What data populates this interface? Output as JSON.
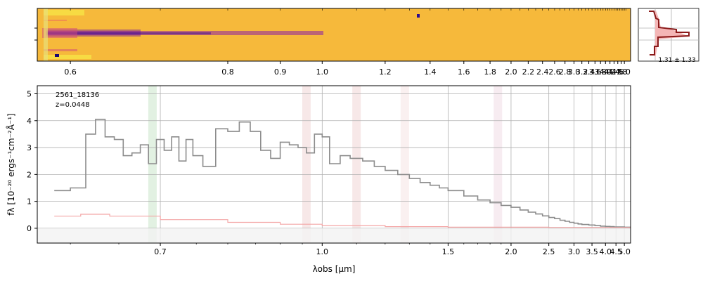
{
  "spectrum_2d": {
    "xticks_top": [
      "0.6",
      "0.8",
      "0.9",
      "1.0",
      "1.2",
      "1.4",
      "1.6",
      "1.8",
      "2.0",
      "2.2",
      "2.4",
      "2.6",
      "2.8",
      "3.0",
      "3.2",
      "3.4",
      "3.6",
      "3.8",
      "4.0",
      "4.2",
      "4.4",
      "4.6",
      "4.8",
      "5.0"
    ],
    "xticks_top_values": [
      0.6,
      0.8,
      0.9,
      1.0,
      1.2,
      1.4,
      1.6,
      1.8,
      2.0,
      2.2,
      2.4,
      2.6,
      2.8,
      3.0,
      3.2,
      3.4,
      3.6,
      3.8,
      4.0,
      4.2,
      4.4,
      4.6,
      4.8,
      5.0
    ],
    "colormap": "plasma",
    "background_color": "#f6b93b"
  },
  "profile": {
    "label": "1.31 ± 1.33",
    "line_color": "#8b1a1a",
    "fill_color": "#f4b6b6"
  },
  "chart_data": {
    "type": "line",
    "annotation": {
      "id": "2561_18136",
      "z": "z=0.0448"
    },
    "xlabel": "λobs [μm]",
    "ylabel": "fλ [10⁻²⁰ ergs⁻¹cm⁻²Å⁻¹]",
    "xscale": "reciprocal",
    "xlim": [
      0.57,
      5.45
    ],
    "ylim": [
      -0.55,
      5.3
    ],
    "xticks": [
      "0.7",
      "1.0",
      "1.5",
      "2.0",
      "2.5",
      "3.0",
      "3.5",
      "4.0",
      "4.5",
      "5.0"
    ],
    "xtick_values": [
      0.7,
      1.0,
      1.5,
      2.0,
      2.5,
      3.0,
      3.5,
      4.0,
      4.5,
      5.0
    ],
    "yticks": [
      "0",
      "1",
      "2",
      "3",
      "4",
      "5"
    ],
    "ytick_values": [
      0,
      1,
      2,
      3,
      4,
      5
    ],
    "grid": true,
    "emission_bands": [
      {
        "x": 0.69,
        "color": "#cfe8cf"
      },
      {
        "x": 0.96,
        "color": "#f2d9d9"
      },
      {
        "x": 1.1,
        "color": "#f2d9d9"
      },
      {
        "x": 1.28,
        "color": "#f7e6e6"
      },
      {
        "x": 1.87,
        "color": "#f2e0e8"
      }
    ],
    "series": [
      {
        "role": "flux",
        "color": "#8c8c8c",
        "x": [
          0.585,
          0.6,
          0.615,
          0.625,
          0.635,
          0.645,
          0.655,
          0.665,
          0.675,
          0.685,
          0.695,
          0.705,
          0.715,
          0.725,
          0.735,
          0.745,
          0.76,
          0.78,
          0.8,
          0.82,
          0.84,
          0.86,
          0.88,
          0.9,
          0.92,
          0.94,
          0.96,
          0.98,
          1.0,
          1.02,
          1.05,
          1.08,
          1.12,
          1.16,
          1.2,
          1.25,
          1.3,
          1.35,
          1.4,
          1.45,
          1.5,
          1.6,
          1.7,
          1.8,
          1.9,
          2.0,
          2.1,
          2.2,
          2.3,
          2.4,
          2.5,
          2.6,
          2.7,
          2.8,
          2.9,
          3.0,
          3.1,
          3.2,
          3.4,
          3.6,
          3.8,
          4.0,
          4.2,
          4.4,
          4.6,
          4.8,
          5.0,
          5.2,
          5.4
        ],
        "y": [
          1.4,
          1.5,
          3.5,
          4.05,
          3.4,
          3.3,
          2.7,
          2.8,
          3.1,
          2.4,
          3.3,
          2.9,
          3.4,
          2.5,
          3.3,
          2.7,
          2.3,
          3.7,
          3.6,
          3.95,
          3.6,
          2.9,
          2.6,
          3.2,
          3.1,
          3.0,
          2.8,
          3.5,
          3.4,
          2.4,
          2.7,
          2.6,
          2.5,
          2.3,
          2.15,
          2.0,
          1.85,
          1.7,
          1.6,
          1.5,
          1.4,
          1.2,
          1.05,
          0.95,
          0.85,
          0.78,
          0.68,
          0.6,
          0.53,
          0.46,
          0.4,
          0.36,
          0.3,
          0.26,
          0.22,
          0.19,
          0.16,
          0.14,
          0.12,
          0.1,
          0.08,
          0.07,
          0.06,
          0.05,
          0.05,
          0.05,
          0.04,
          0.04,
          0.03
        ]
      },
      {
        "role": "error",
        "color": "#f4a6a6",
        "x": [
          0.585,
          0.61,
          0.64,
          0.7,
          0.8,
          0.9,
          1.0,
          1.2,
          1.5,
          2.0,
          2.5,
          3.0,
          4.0,
          5.0,
          5.4
        ],
        "y": [
          0.45,
          0.52,
          0.45,
          0.32,
          0.22,
          0.15,
          0.1,
          0.06,
          0.04,
          0.04,
          0.03,
          0.03,
          0.03,
          0.03,
          0.03
        ]
      }
    ]
  }
}
